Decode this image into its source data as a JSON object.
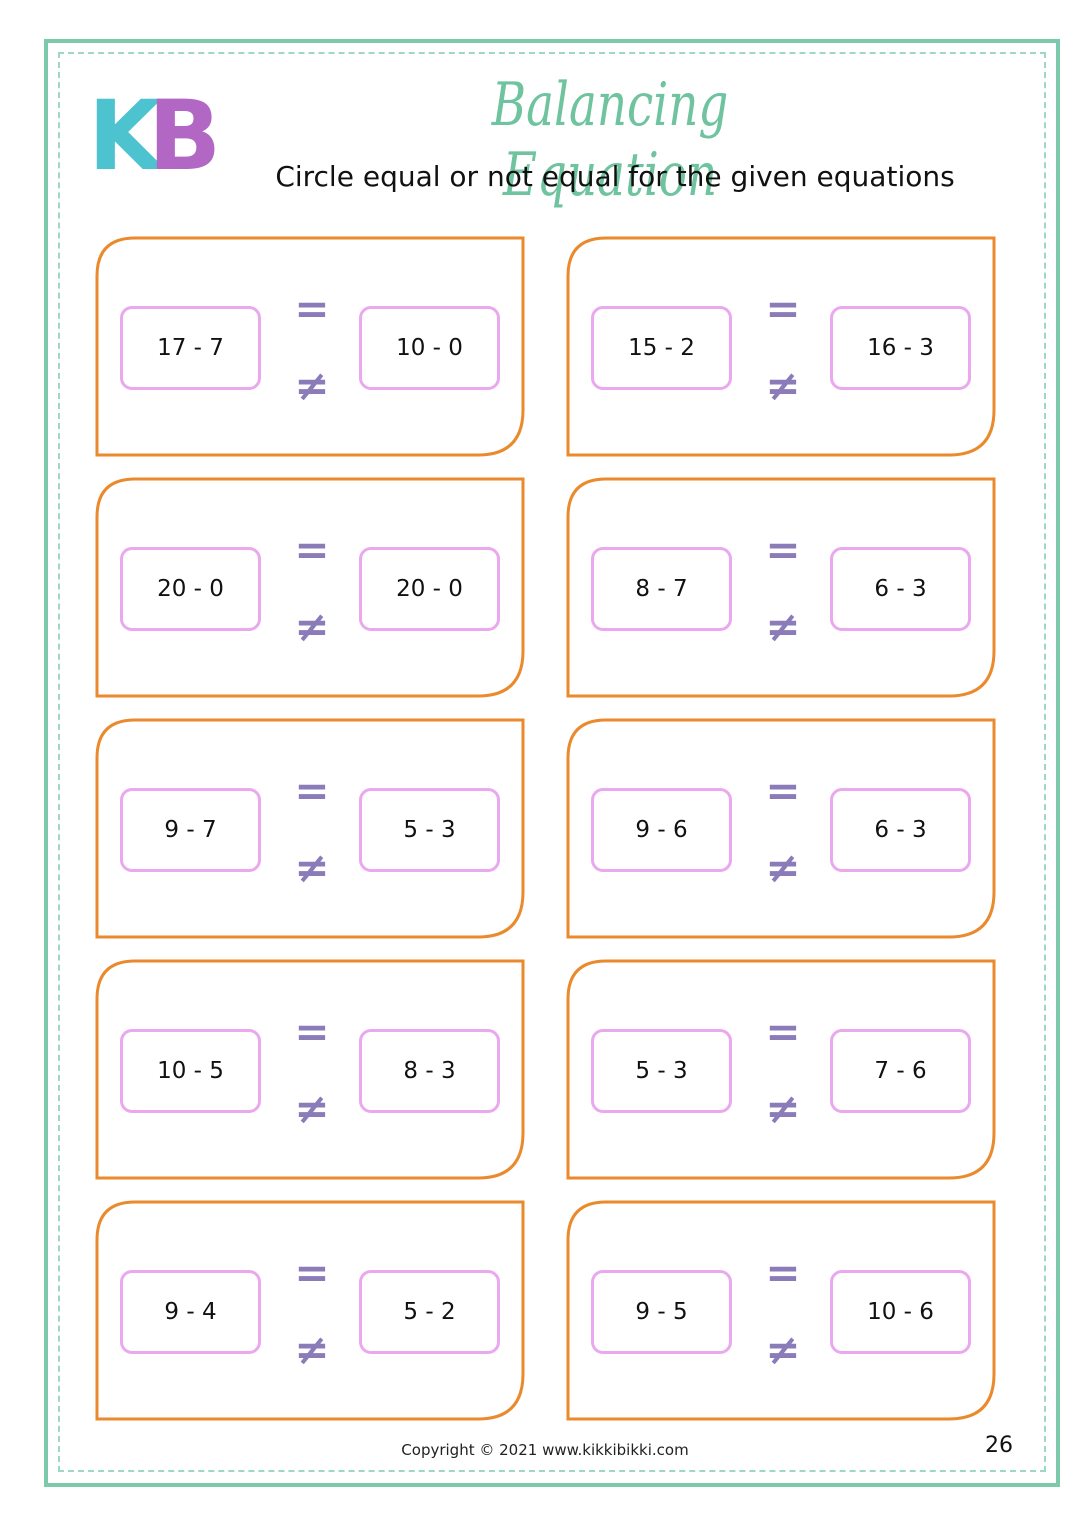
{
  "header": {
    "logo": {
      "left": "K",
      "right": "B"
    },
    "title": "Balancing Equation",
    "instruction": "Circle equal or not equal for the given equations"
  },
  "symbols": {
    "equal": "=",
    "not_equal": "≠"
  },
  "cards": [
    {
      "left": "17 - 7",
      "right": "10 - 0"
    },
    {
      "left": "15 - 2",
      "right": "16 - 3"
    },
    {
      "left": "20 - 0",
      "right": "20 - 0"
    },
    {
      "left": "8 - 7",
      "right": "6 - 3"
    },
    {
      "left": "9 - 7",
      "right": "5 - 3"
    },
    {
      "left": "9 - 6",
      "right": "6 - 3"
    },
    {
      "left": "10 - 5",
      "right": "8 - 3"
    },
    {
      "left": "5 - 3",
      "right": "7 - 6"
    },
    {
      "left": "9 - 4",
      "right": "5 - 2"
    },
    {
      "left": "9 - 5",
      "right": "10 - 6"
    }
  ],
  "footer": {
    "copyright": "Copyright © 2021 www.kikkibikki.com",
    "page_number": "26"
  }
}
